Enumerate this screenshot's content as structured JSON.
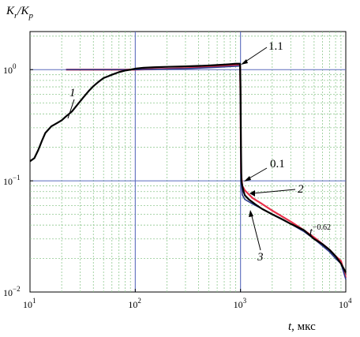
{
  "chart_data": {
    "type": "line",
    "x_scale": "log",
    "y_scale": "log",
    "xlim": [
      10,
      10000
    ],
    "ylim": [
      0.01,
      2.2
    ],
    "grid": true,
    "ylabel": {
      "main": "K",
      "sub1": "r",
      "sep": "/K",
      "sub2": "p"
    },
    "xlabel": {
      "var": "t",
      "unit": ", мкс"
    },
    "x_ticks": [
      {
        "base": "10",
        "exp": "1",
        "value": 10
      },
      {
        "base": "10",
        "exp": "2",
        "value": 100
      },
      {
        "base": "10",
        "exp": "3",
        "value": 1000
      },
      {
        "base": "10",
        "exp": "4",
        "value": 10000
      }
    ],
    "y_ticks": [
      {
        "base": "10",
        "exp": "−2",
        "value": 0.01
      },
      {
        "base": "10",
        "exp": "−1",
        "value": 0.1
      },
      {
        "base": "10",
        "exp": "0",
        "value": 1
      }
    ],
    "annotations": {
      "a11": "1.1",
      "a01": "0.1",
      "c1": "1",
      "c2": "2",
      "c3": "3",
      "power_base": "t",
      "power_exp": "−0.62"
    },
    "colors": {
      "series1": "#000000",
      "series2": "#e8304a",
      "series3": "#2b3a8c",
      "grid_major": "#5a6bbd",
      "grid_minor": "#8fc88f"
    },
    "series": [
      {
        "label": "1",
        "color": "#000000",
        "points": [
          [
            10,
            0.15
          ],
          [
            11,
            0.16
          ],
          [
            12,
            0.19
          ],
          [
            13,
            0.23
          ],
          [
            14,
            0.27
          ],
          [
            16,
            0.31
          ],
          [
            18,
            0.33
          ],
          [
            20,
            0.35
          ],
          [
            22,
            0.38
          ],
          [
            25,
            0.42
          ],
          [
            28,
            0.48
          ],
          [
            32,
            0.56
          ],
          [
            36,
            0.64
          ],
          [
            40,
            0.71
          ],
          [
            45,
            0.78
          ],
          [
            50,
            0.84
          ],
          [
            55,
            0.87
          ],
          [
            60,
            0.9
          ],
          [
            70,
            0.95
          ],
          [
            80,
            0.98
          ],
          [
            90,
            1.0
          ],
          [
            100,
            1.02
          ],
          [
            120,
            1.04
          ],
          [
            150,
            1.05
          ],
          [
            200,
            1.06
          ],
          [
            300,
            1.07
          ],
          [
            400,
            1.08
          ],
          [
            500,
            1.09
          ],
          [
            600,
            1.1
          ],
          [
            700,
            1.11
          ],
          [
            800,
            1.12
          ],
          [
            900,
            1.13
          ],
          [
            990,
            1.13
          ],
          [
            1000,
            0.7
          ],
          [
            1010,
            0.2
          ],
          [
            1020,
            0.1
          ],
          [
            1040,
            0.09
          ],
          [
            1070,
            0.08
          ],
          [
            1100,
            0.074
          ],
          [
            1200,
            0.068
          ],
          [
            1400,
            0.061
          ],
          [
            1600,
            0.056
          ],
          [
            2000,
            0.05
          ],
          [
            2500,
            0.045
          ],
          [
            3000,
            0.041
          ],
          [
            4000,
            0.036
          ],
          [
            5000,
            0.03
          ],
          [
            6000,
            0.027
          ],
          [
            7000,
            0.024
          ],
          [
            8000,
            0.021
          ],
          [
            9000,
            0.018
          ],
          [
            10000,
            0.015
          ]
        ]
      },
      {
        "label": "2",
        "color": "#e8304a",
        "points": [
          [
            22,
            1.0
          ],
          [
            100,
            1.0
          ],
          [
            300,
            1.03
          ],
          [
            600,
            1.07
          ],
          [
            990,
            1.1
          ],
          [
            1000,
            0.5
          ],
          [
            1010,
            0.12
          ],
          [
            1040,
            0.09
          ],
          [
            1100,
            0.082
          ],
          [
            1300,
            0.07
          ],
          [
            1600,
            0.062
          ],
          [
            2000,
            0.054
          ],
          [
            3000,
            0.043
          ],
          [
            4000,
            0.036
          ],
          [
            5000,
            0.031
          ],
          [
            6000,
            0.027
          ],
          [
            7000,
            0.024
          ],
          [
            8000,
            0.021
          ],
          [
            9000,
            0.019
          ],
          [
            10000,
            0.0135
          ]
        ]
      },
      {
        "label": "3",
        "color": "#2b3a8c",
        "points": [
          [
            22,
            1.0
          ],
          [
            100,
            1.0
          ],
          [
            300,
            1.02
          ],
          [
            600,
            1.05
          ],
          [
            990,
            1.08
          ],
          [
            1000,
            0.4
          ],
          [
            1010,
            0.1
          ],
          [
            1040,
            0.075
          ],
          [
            1100,
            0.068
          ],
          [
            1300,
            0.062
          ],
          [
            1600,
            0.056
          ],
          [
            2000,
            0.05
          ],
          [
            3000,
            0.041
          ],
          [
            4000,
            0.035
          ],
          [
            5000,
            0.03
          ],
          [
            6000,
            0.026
          ],
          [
            7000,
            0.023
          ],
          [
            8000,
            0.02
          ],
          [
            9000,
            0.018
          ],
          [
            10000,
            0.013
          ]
        ]
      }
    ]
  }
}
